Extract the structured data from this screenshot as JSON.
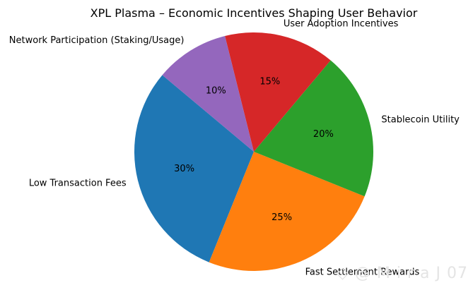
{
  "chart_data": {
    "type": "pie",
    "title": "XPL Plasma – Economic Incentives Shaping User Behavior",
    "start_angle_deg": 140,
    "direction": "counterclockwise",
    "slices": [
      {
        "label": "Low Transaction Fees",
        "value": 30,
        "pct_text": "30%",
        "color": "#1f77b4"
      },
      {
        "label": "Fast Settlement Rewards",
        "value": 25,
        "pct_text": "25%",
        "color": "#ff7f0e"
      },
      {
        "label": "Stablecoin Utility",
        "value": 20,
        "pct_text": "20%",
        "color": "#2ca02c"
      },
      {
        "label": "User Adoption Incentives",
        "value": 15,
        "pct_text": "15%",
        "color": "#d62728"
      },
      {
        "label": "Network Participation (Staking/Usage)",
        "value": 10,
        "pct_text": "10%",
        "color": "#9467bd"
      }
    ]
  },
  "watermark": "◇ @ M i r a J 07"
}
